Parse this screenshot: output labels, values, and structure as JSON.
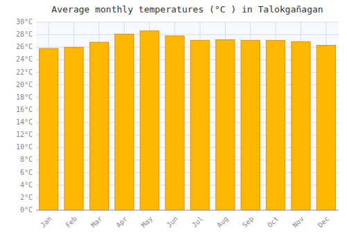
{
  "chart_data": {
    "type": "bar",
    "title": "Average monthly temperatures (°C ) in Talokgañagan",
    "categories": [
      "Jan",
      "Feb",
      "Mar",
      "Apr",
      "May",
      "Jun",
      "Jul",
      "Aug",
      "Sep",
      "Oct",
      "Nov",
      "Dec"
    ],
    "values": [
      25.8,
      26.0,
      26.8,
      28.1,
      28.6,
      27.8,
      27.1,
      27.2,
      27.1,
      27.1,
      26.9,
      26.3
    ],
    "color": "#FFB800",
    "ylim": [
      0,
      30
    ],
    "yticks": [
      {
        "value": 0,
        "label": "0°C"
      },
      {
        "value": 2,
        "label": "2°C"
      },
      {
        "value": 4,
        "label": "4°C"
      },
      {
        "value": 6,
        "label": "6°C"
      },
      {
        "value": 8,
        "label": "8°C"
      },
      {
        "value": 10,
        "label": "10°C"
      },
      {
        "value": 12,
        "label": "12°C"
      },
      {
        "value": 14,
        "label": "14°C"
      },
      {
        "value": 16,
        "label": "16°C"
      },
      {
        "value": 18,
        "label": "18°C"
      },
      {
        "value": 20,
        "label": "20°C"
      },
      {
        "value": 22,
        "label": "22°C"
      },
      {
        "value": 24,
        "label": "24°C"
      },
      {
        "value": 26,
        "label": "26°C"
      },
      {
        "value": 28,
        "label": "28°C"
      },
      {
        "value": 30,
        "label": "30°C"
      }
    ],
    "grid": true
  }
}
